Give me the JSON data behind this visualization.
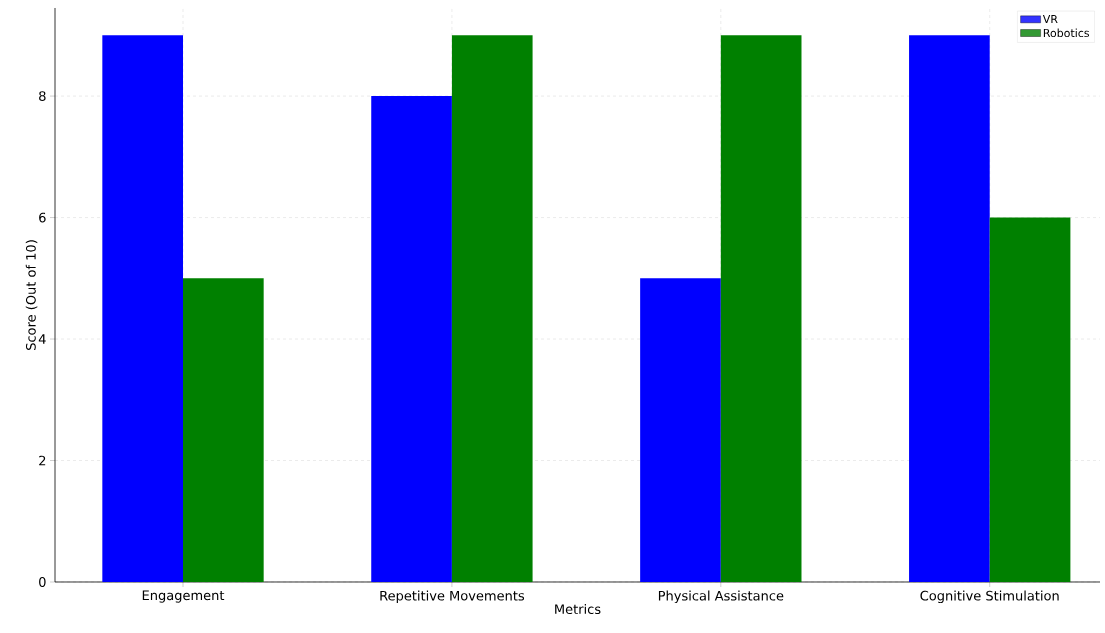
{
  "chart_data": {
    "type": "bar",
    "xlabel": "Metrics",
    "ylabel": "Score (Out of 10)",
    "categories": [
      "Engagement",
      "Repetitive Movements",
      "Physical Assistance",
      "Cognitive Stimulation"
    ],
    "series": [
      {
        "name": "VR",
        "color": "#0000ff",
        "values": [
          9,
          8,
          5,
          9
        ]
      },
      {
        "name": "Robotics",
        "color": "#008000",
        "values": [
          5,
          9,
          9,
          6
        ]
      }
    ],
    "ylim": [
      0,
      9.45
    ],
    "yticks": [
      0,
      2,
      4,
      6,
      8
    ],
    "grid": true,
    "legend": "top right"
  }
}
